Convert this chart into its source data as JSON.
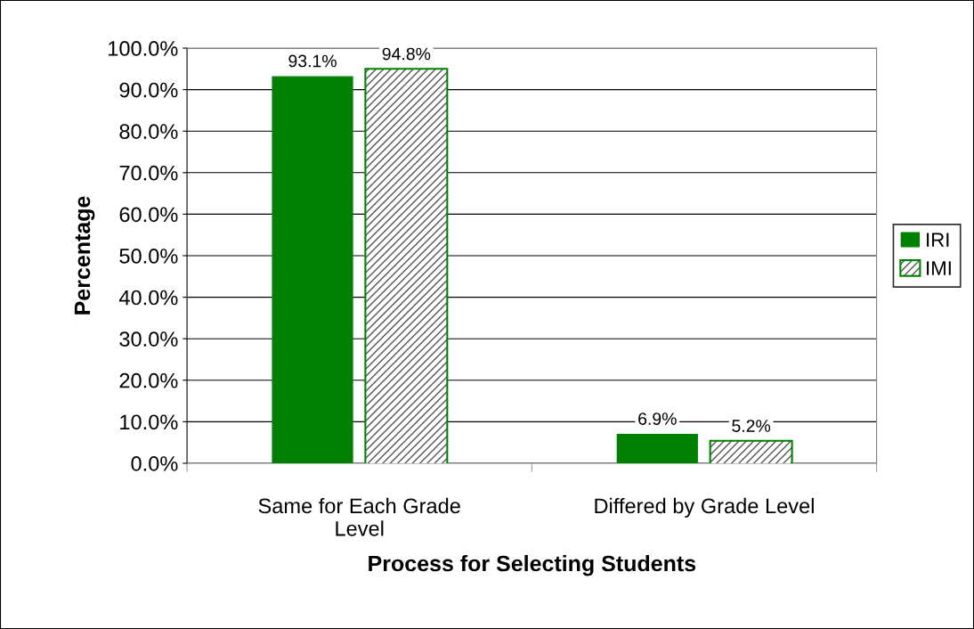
{
  "chart_data": {
    "type": "bar",
    "xlabel": "Process for Selecting Students",
    "ylabel": "Percentage",
    "categories": [
      "Same for Each Grade\nLevel",
      "Differed by Grade Level"
    ],
    "series": [
      {
        "name": "IRI",
        "color": "#008000",
        "values": [
          93.1,
          6.9
        ],
        "value_labels": [
          "93.1%",
          "6.9%"
        ]
      },
      {
        "name": "IMI",
        "color": "#008000",
        "values": [
          94.8,
          5.2
        ],
        "value_labels": [
          "94.8%",
          "5.2%"
        ]
      }
    ],
    "ylim": [
      0,
      100
    ],
    "yticks": [
      {
        "value": 0,
        "label": "0.0%"
      },
      {
        "value": 10,
        "label": "10.0%"
      },
      {
        "value": 20,
        "label": "20.0%"
      },
      {
        "value": 30,
        "label": "30.0%"
      },
      {
        "value": 40,
        "label": "40.0%"
      },
      {
        "value": 50,
        "label": "50.0%"
      },
      {
        "value": 60,
        "label": "60.0%"
      },
      {
        "value": 70,
        "label": "70.0%"
      },
      {
        "value": 80,
        "label": "80.0%"
      },
      {
        "value": 90,
        "label": "90.0%"
      },
      {
        "value": 100,
        "label": "100.0%"
      }
    ],
    "grid": "y",
    "legend": "right"
  }
}
